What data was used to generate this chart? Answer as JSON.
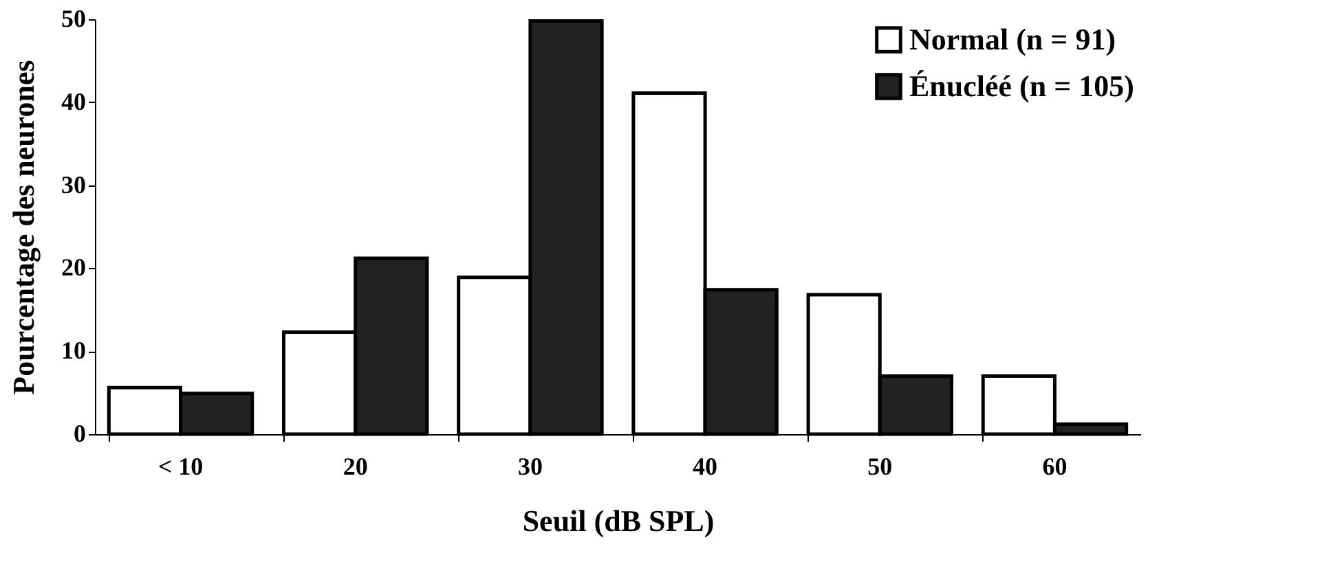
{
  "chart_data": {
    "type": "bar",
    "xlabel": "Seuil (dB SPL)",
    "ylabel": "Pourcentage des neurones",
    "categories": [
      "< 10",
      "20",
      "30",
      "40",
      "50",
      "60"
    ],
    "series": [
      {
        "name": "Normal (n = 91)",
        "color": "#ffffff",
        "values": [
          5.6,
          12.3,
          18.9,
          41.1,
          16.8,
          7.0
        ]
      },
      {
        "name": "Énucléé (n = 105)",
        "color": "#222222",
        "values": [
          4.9,
          21.2,
          49.8,
          17.4,
          7.0,
          1.2
        ]
      }
    ],
    "ylim": [
      0,
      50
    ],
    "yticks": [
      0,
      10,
      20,
      30,
      40,
      50
    ],
    "grid": false,
    "legend": "top right"
  }
}
